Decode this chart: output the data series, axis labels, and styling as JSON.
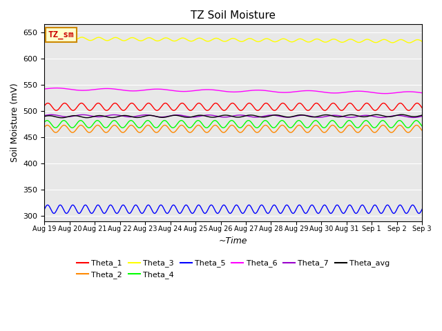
{
  "title": "TZ Soil Moisture",
  "xlabel": "~Time",
  "ylabel": "Soil Moisture (mV)",
  "bg_color": "#e8e8e8",
  "ylim": [
    290,
    665
  ],
  "yticks": [
    300,
    350,
    400,
    450,
    500,
    550,
    600,
    650
  ],
  "n_days": 15,
  "series": [
    {
      "name": "Theta_1",
      "color": "#ff0000",
      "base": 508,
      "amp": 7,
      "freq": 1.5,
      "phase": 0.3,
      "trend": 0.0
    },
    {
      "name": "Theta_2",
      "color": "#ff8800",
      "base": 466,
      "amp": 7,
      "freq": 1.5,
      "phase": 0.5,
      "trend": 0.0
    },
    {
      "name": "Theta_3",
      "color": "#ffff00",
      "base": 638,
      "amp": 3,
      "freq": 1.5,
      "phase": 0.1,
      "trend": -0.35
    },
    {
      "name": "Theta_4",
      "color": "#00ff00",
      "base": 475,
      "amp": 7,
      "freq": 1.5,
      "phase": 0.6,
      "trend": 0.0
    },
    {
      "name": "Theta_5",
      "color": "#0000ff",
      "base": 313,
      "amp": 8,
      "freq": 2.0,
      "phase": 0.0,
      "trend": 0.0
    },
    {
      "name": "Theta_6",
      "color": "#ff00ff",
      "base": 542,
      "amp": 2,
      "freq": 0.5,
      "phase": 0.0,
      "trend": -0.5
    },
    {
      "name": "Theta_7",
      "color": "#9900cc",
      "base": 491,
      "amp": 2,
      "freq": 0.8,
      "phase": 0.2,
      "trend": -0.1
    },
    {
      "name": "Theta_avg",
      "color": "#000000",
      "base": 489,
      "amp": 2,
      "freq": 1.0,
      "phase": 0.4,
      "trend": 0.15
    }
  ],
  "legend_label_box": "TZ_sm",
  "legend_box_facecolor": "#ffffcc",
  "legend_box_edgecolor": "#cc8800",
  "tick_labels": [
    "Aug 19",
    "Aug 20",
    "Aug 21",
    "Aug 22",
    "Aug 23",
    "Aug 24",
    "Aug 25",
    "Aug 26",
    "Aug 27",
    "Aug 28",
    "Aug 29",
    "Aug 30",
    "Aug 31",
    "Sep 1",
    "Sep 2",
    "Sep 3"
  ]
}
